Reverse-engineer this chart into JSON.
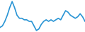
{
  "x": [
    0,
    1,
    2,
    3,
    4,
    5,
    6,
    7,
    8,
    9,
    10,
    11,
    12,
    13,
    14,
    15,
    16,
    17,
    18,
    19,
    20,
    21,
    22,
    23,
    24,
    25,
    26,
    27,
    28,
    29,
    30,
    31,
    32,
    33,
    34,
    35
  ],
  "y": [
    3,
    4,
    7,
    11,
    16,
    20,
    16,
    11,
    9,
    9,
    8,
    8,
    7,
    7,
    4,
    1,
    2,
    5,
    7,
    8,
    7,
    8,
    7,
    8,
    9,
    8,
    11,
    14,
    13,
    11,
    10,
    9,
    10,
    12,
    10,
    7
  ],
  "line_color": "#2894d4",
  "background_color": "#ffffff",
  "linewidth": 1.2
}
